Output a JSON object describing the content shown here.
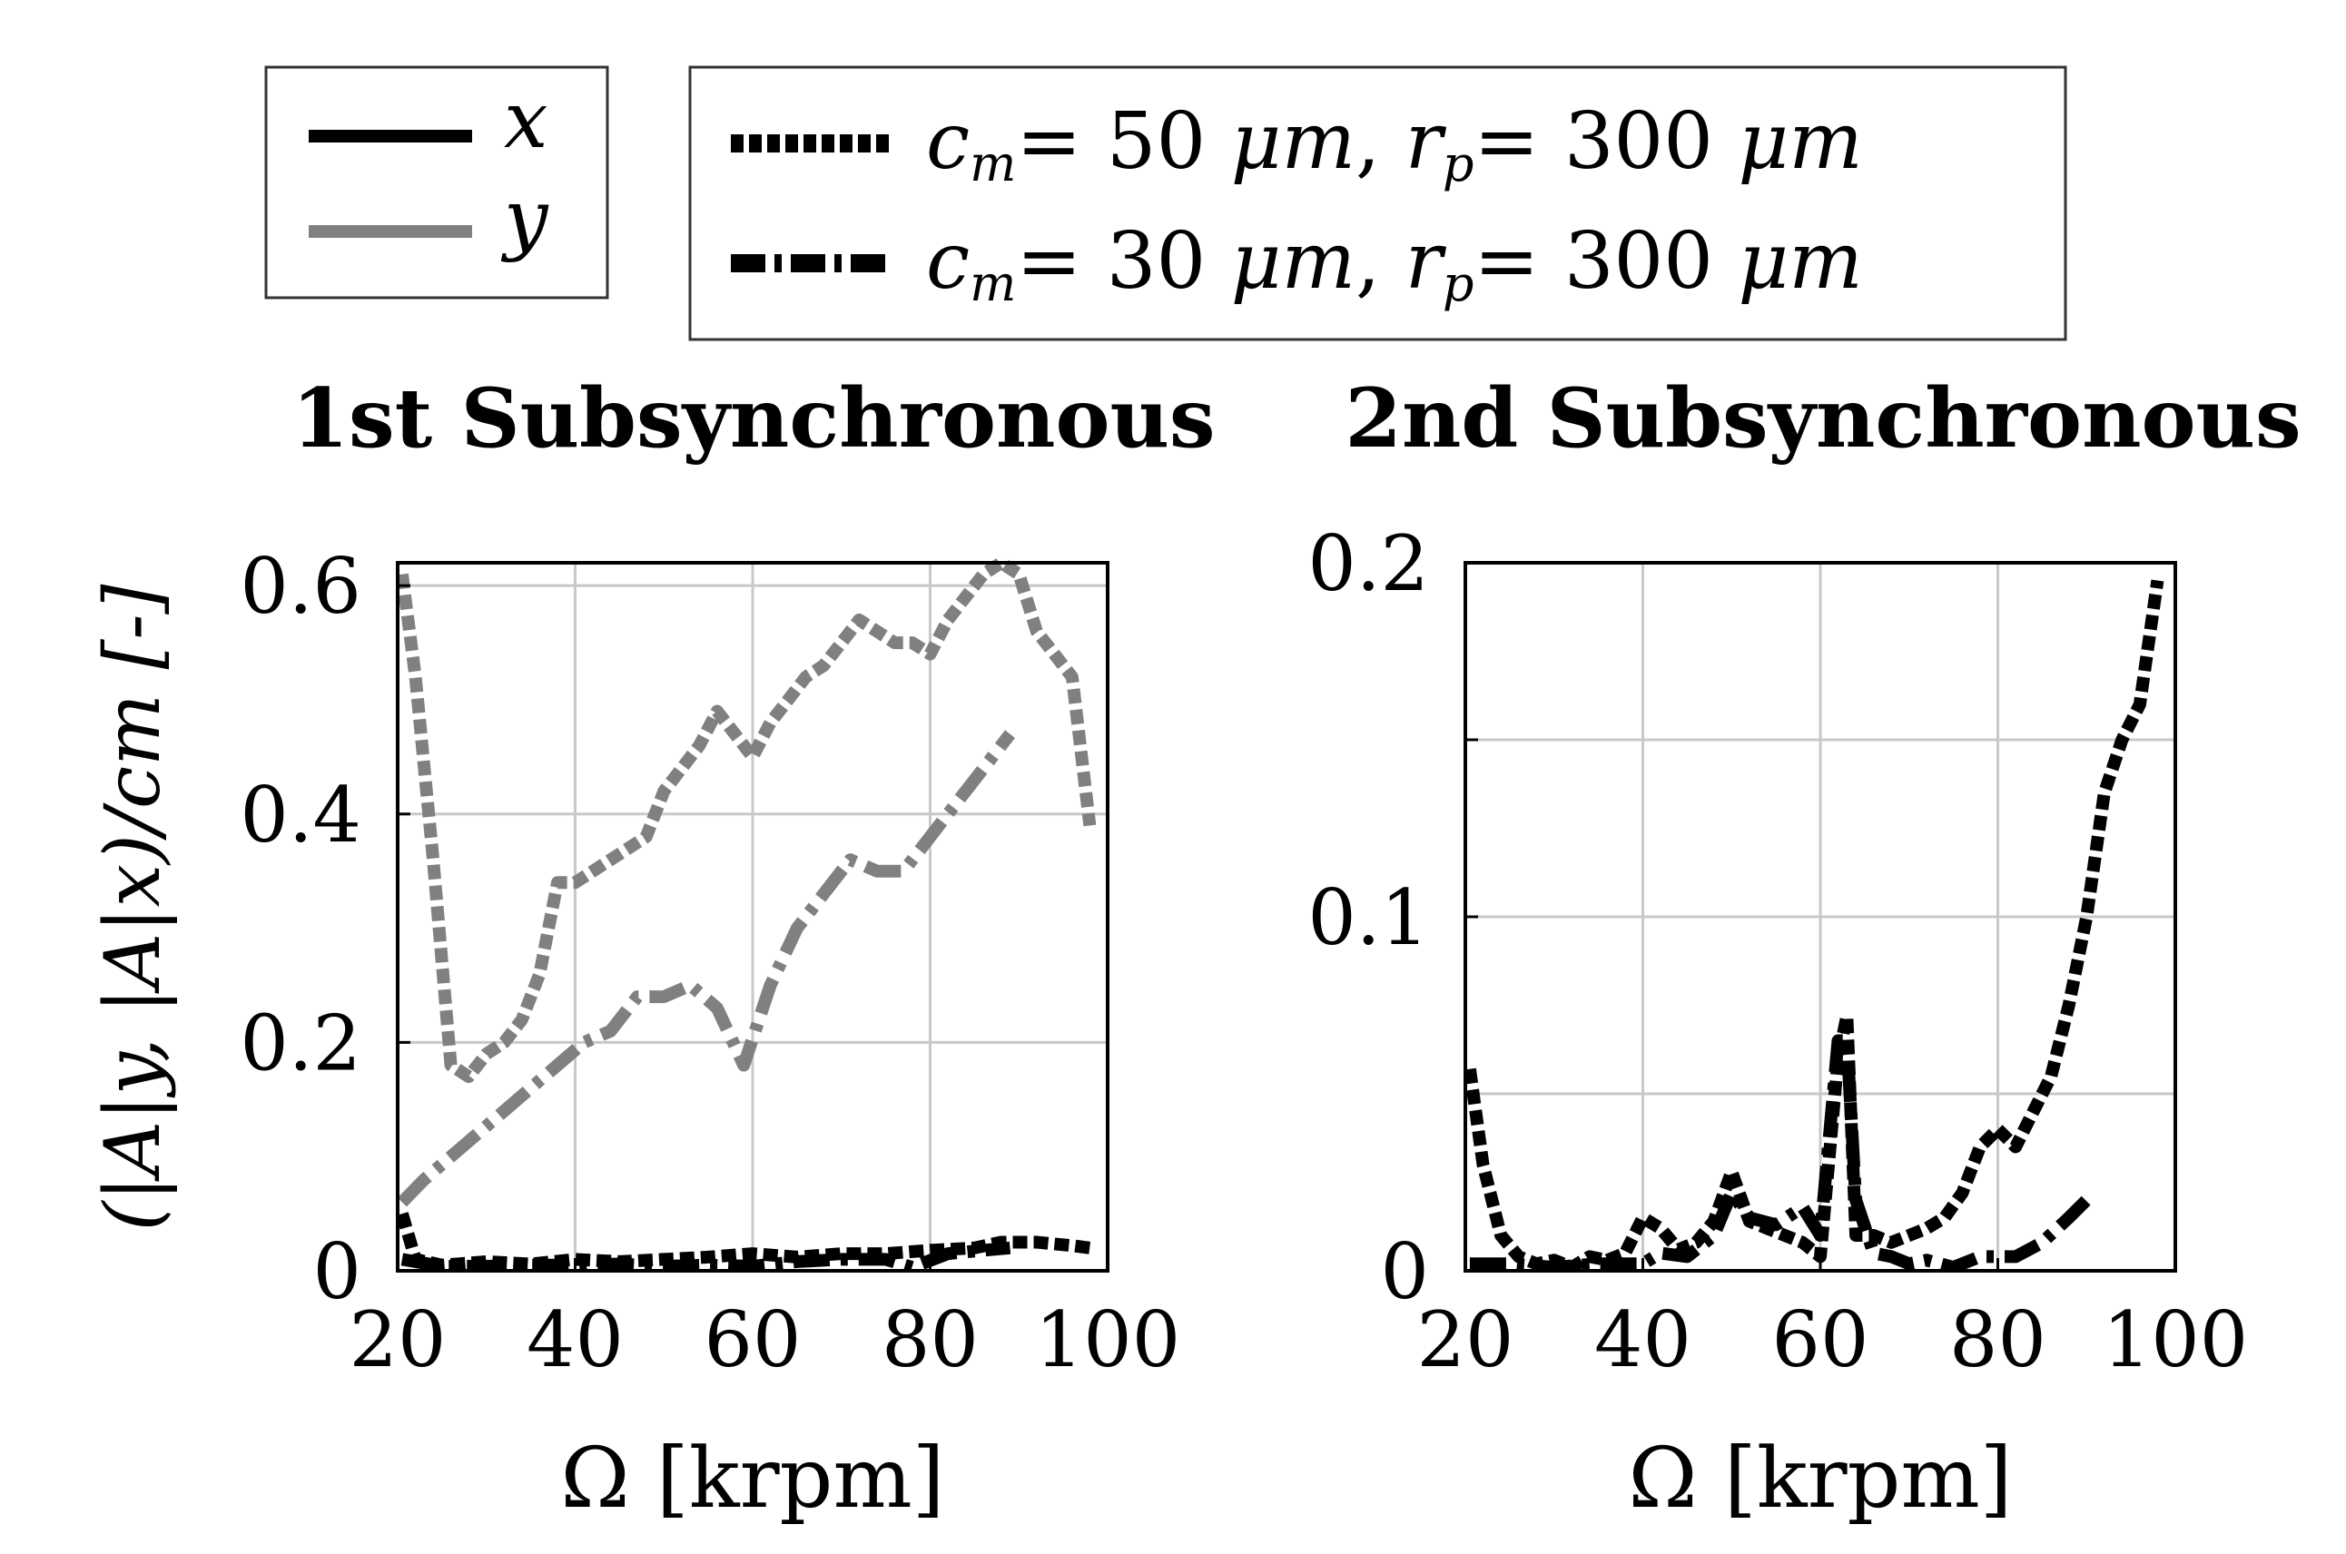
{
  "legend_direction": {
    "entries": [
      {
        "label": "x",
        "color": "#000000"
      },
      {
        "label": "y",
        "color": "#808080"
      }
    ]
  },
  "legend_config": {
    "entries": [
      {
        "cm": "50",
        "rp": "300",
        "unit": "μm",
        "style": "dotted"
      },
      {
        "cm": "30",
        "rp": "300",
        "unit": "μm",
        "style": "dashdot"
      }
    ]
  },
  "shared_ylabel": "(|A|y, |A|x)/cm [-]",
  "chart_data": [
    {
      "type": "line",
      "title": "1st Subsynchronous",
      "xlabel": "Ω [krpm]",
      "ylabel": "(|A|y, |A|x)/cm [-]",
      "xlim": [
        20,
        100
      ],
      "ylim": [
        0,
        0.62
      ],
      "xticks": [
        20,
        40,
        60,
        80,
        100
      ],
      "yticks": [
        0,
        0.2,
        0.4,
        0.6
      ],
      "ytick_labels": [
        "0",
        "0.2",
        "0.4",
        "0.6"
      ],
      "grid": true,
      "series": [
        {
          "name": "y, cm=50 μm, rp=300 μm",
          "color": "#808080",
          "style": "dotted",
          "x": [
            20.5,
            22,
            24,
            26,
            28,
            30,
            32,
            34,
            36,
            38,
            40,
            42,
            44,
            46,
            48,
            50,
            52,
            54,
            56,
            58,
            60,
            62,
            64,
            66,
            68,
            70,
            72,
            74,
            76,
            78,
            80,
            82,
            84,
            86,
            88,
            90,
            92,
            94,
            96,
            98
          ],
          "y": [
            0.61,
            0.52,
            0.36,
            0.18,
            0.17,
            0.19,
            0.2,
            0.22,
            0.26,
            0.34,
            0.34,
            0.35,
            0.36,
            0.37,
            0.38,
            0.42,
            0.44,
            0.46,
            0.49,
            0.47,
            0.45,
            0.48,
            0.5,
            0.52,
            0.53,
            0.55,
            0.57,
            0.56,
            0.55,
            0.55,
            0.54,
            0.57,
            0.59,
            0.61,
            0.62,
            0.61,
            0.56,
            0.54,
            0.52,
            0.39
          ]
        },
        {
          "name": "y, cm=30 μm, rp=300 μm",
          "color": "#808080",
          "style": "dashdot",
          "x": [
            20.5,
            23,
            26,
            29,
            32,
            35,
            38,
            41,
            44,
            47,
            50,
            53,
            56,
            59,
            62,
            65,
            68,
            71,
            74,
            77,
            80,
            83,
            86,
            89
          ],
          "y": [
            0.06,
            0.08,
            0.1,
            0.12,
            0.14,
            0.16,
            0.18,
            0.2,
            0.21,
            0.24,
            0.24,
            0.25,
            0.23,
            0.18,
            0.25,
            0.3,
            0.33,
            0.36,
            0.35,
            0.35,
            0.38,
            0.41,
            0.44,
            0.47
          ]
        },
        {
          "name": "x, cm=50 μm, rp=300 μm",
          "color": "#000000",
          "style": "dotted",
          "x": [
            20.5,
            22,
            25,
            30,
            35,
            40,
            45,
            50,
            55,
            60,
            65,
            70,
            75,
            80,
            85,
            88,
            92,
            96,
            98
          ],
          "y": [
            0.05,
            0.01,
            0.005,
            0.008,
            0.006,
            0.01,
            0.008,
            0.01,
            0.012,
            0.015,
            0.012,
            0.015,
            0.015,
            0.018,
            0.02,
            0.025,
            0.025,
            0.022,
            0.02
          ]
        },
        {
          "name": "x, cm=30 μm, rp=300 μm",
          "color": "#000000",
          "style": "dashdot",
          "x": [
            20.5,
            25,
            30,
            35,
            40,
            45,
            50,
            55,
            60,
            65,
            70,
            75,
            78,
            82,
            86,
            89
          ],
          "y": [
            0.01,
            0.004,
            0.004,
            0.005,
            0.005,
            0.006,
            0.004,
            0.005,
            0.004,
            0.008,
            0.01,
            0.01,
            0.003,
            0.015,
            0.018,
            0.02
          ]
        }
      ]
    },
    {
      "type": "line",
      "title": "2nd Subsynchronous",
      "xlabel": "Ω [krpm]",
      "ylabel": "",
      "xlim": [
        20,
        100
      ],
      "ylim": [
        0,
        0.2
      ],
      "xticks": [
        20,
        40,
        60,
        80,
        100
      ],
      "yticks": [
        0,
        0.05,
        0.1,
        0.15,
        0.2
      ],
      "ytick_labels": [
        "0",
        "",
        "0.1",
        "",
        "0.2"
      ],
      "grid": true,
      "series": [
        {
          "name": "x, cm=50 μm, rp=300 μm",
          "color": "#000000",
          "style": "dotted",
          "x": [
            20.5,
            22,
            24,
            26,
            28,
            30,
            32,
            34,
            36,
            38,
            40,
            42,
            44,
            46,
            48,
            50,
            52,
            54,
            56,
            58,
            60,
            62,
            63,
            64,
            66,
            68,
            70,
            72,
            74,
            76,
            78,
            80,
            82,
            84,
            86,
            88,
            90,
            92,
            94,
            96,
            98
          ],
          "y": [
            0.057,
            0.03,
            0.01,
            0.004,
            0.002,
            0.003,
            0.001,
            0.004,
            0.003,
            0.005,
            0.015,
            0.012,
            0.006,
            0.008,
            0.014,
            0.028,
            0.014,
            0.012,
            0.01,
            0.008,
            0.004,
            0.06,
            0.072,
            0.01,
            0.01,
            0.008,
            0.01,
            0.012,
            0.015,
            0.022,
            0.035,
            0.04,
            0.035,
            0.045,
            0.055,
            0.075,
            0.1,
            0.135,
            0.15,
            0.16,
            0.195
          ]
        },
        {
          "name": "x, cm=30 μm, rp=300 μm",
          "color": "#000000",
          "style": "dashdot",
          "x": [
            20.5,
            25,
            30,
            35,
            40,
            42,
            45,
            48,
            50,
            52,
            55,
            58,
            60,
            62,
            63,
            64,
            66,
            68,
            70,
            72,
            75,
            78,
            82,
            85,
            88,
            90
          ],
          "y": [
            0.002,
            0.002,
            0.001,
            0.002,
            0.002,
            0.005,
            0.004,
            0.01,
            0.022,
            0.015,
            0.013,
            0.018,
            0.01,
            0.065,
            0.065,
            0.02,
            0.005,
            0.004,
            0.002,
            0.003,
            0.001,
            0.004,
            0.004,
            0.008,
            0.015,
            0.02
          ]
        }
      ]
    }
  ]
}
